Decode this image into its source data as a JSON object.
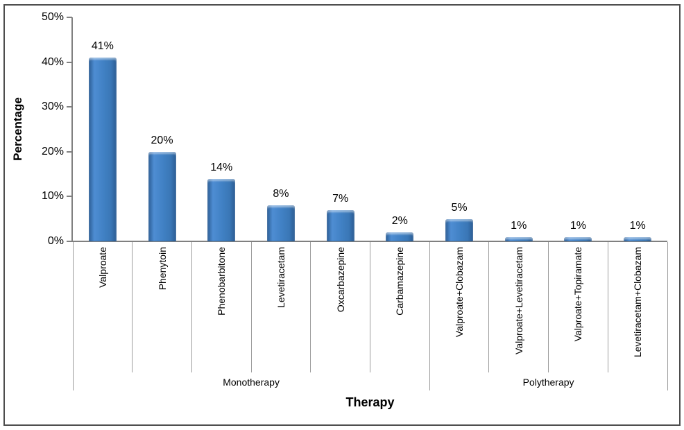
{
  "chart_data": {
    "type": "bar",
    "title": "",
    "xlabel": "Therapy",
    "ylabel": "Percentage",
    "ylim": [
      0,
      50
    ],
    "grid": false,
    "legend": "none",
    "yticks": [
      {
        "v": 0,
        "label": "0%"
      },
      {
        "v": 10,
        "label": "10%"
      },
      {
        "v": 20,
        "label": "20%"
      },
      {
        "v": 30,
        "label": "30%"
      },
      {
        "v": 40,
        "label": "40%"
      },
      {
        "v": 50,
        "label": "50%"
      }
    ],
    "categories": [
      "Valproate",
      "Phenytoin",
      "Phenobarbitone",
      "Levetiracetam",
      "Oxcarbazepine",
      "Carbamazepine",
      "Valproate+Clobazam",
      "Valproate+Levetiracetam",
      "Valproate+Topiramate",
      "Levetiracetam+Clobazam"
    ],
    "values": [
      41,
      20,
      14,
      8,
      7,
      2,
      5,
      1,
      1,
      1
    ],
    "data_labels": [
      "41%",
      "20%",
      "14%",
      "8%",
      "7%",
      "2%",
      "5%",
      "1%",
      "1%",
      "1%"
    ],
    "groups": [
      {
        "label": "Monotherapy",
        "start": 0,
        "end": 6
      },
      {
        "label": "Polytherapy",
        "start": 6,
        "end": 10
      }
    ],
    "colors": {
      "bar_edge": "#2b5c93",
      "bar_light": "#4e8dd3",
      "bar_mid": "#4080c3",
      "bar_mid2": "#3a77b6",
      "axis_line": "#808080",
      "separator": "#9b9b9b",
      "frame_border": "#4d4d4d",
      "text": "#000000"
    }
  }
}
